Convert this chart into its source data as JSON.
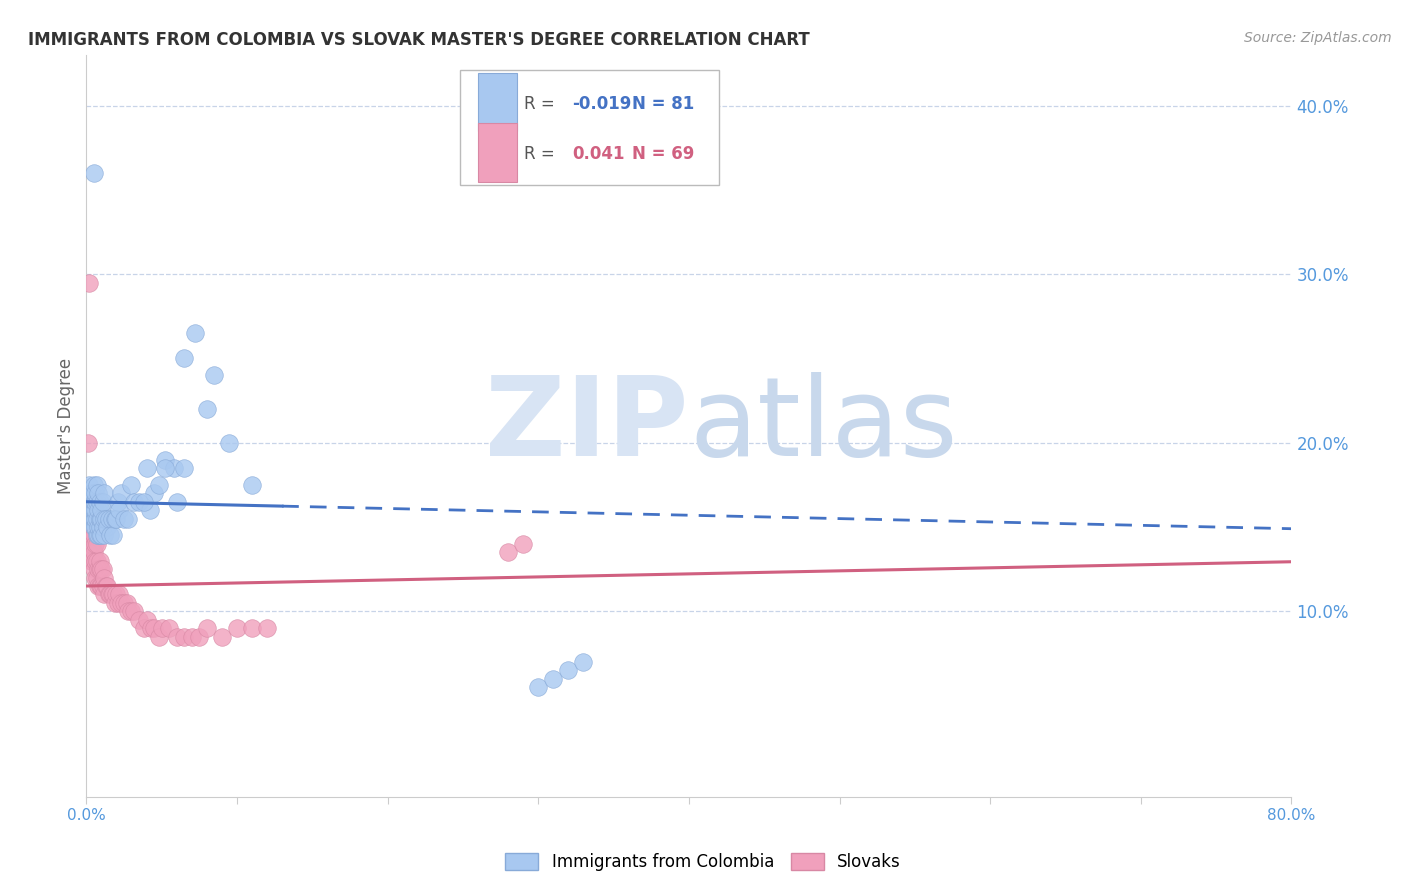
{
  "title": "IMMIGRANTS FROM COLOMBIA VS SLOVAK MASTER'S DEGREE CORRELATION CHART",
  "source": "Source: ZipAtlas.com",
  "ylabel": "Master's Degree",
  "series1_label": "Immigrants from Colombia",
  "series1_R": "-0.019",
  "series1_N": "81",
  "series1_color": "#a8c8f0",
  "series1_edge": "#88aad8",
  "series2_label": "Slovaks",
  "series2_R": "0.041",
  "series2_N": "69",
  "series2_color": "#f0a0bc",
  "series2_edge": "#d888a4",
  "trend1_color": "#4472c4",
  "trend2_color": "#d06080",
  "grid_color": "#c8d4e8",
  "background_color": "#ffffff",
  "title_color": "#333333",
  "right_axis_color": "#5599dd",
  "watermark_main_color": "#d8e4f4",
  "watermark_sub_color": "#c8d8ec",
  "xmin": 0.0,
  "xmax": 0.8,
  "ymin": -0.01,
  "ymax": 0.43,
  "scatter1_x": [
    0.001,
    0.001,
    0.002,
    0.002,
    0.002,
    0.003,
    0.003,
    0.003,
    0.003,
    0.004,
    0.004,
    0.004,
    0.004,
    0.005,
    0.005,
    0.005,
    0.005,
    0.005,
    0.006,
    0.006,
    0.006,
    0.006,
    0.006,
    0.007,
    0.007,
    0.007,
    0.007,
    0.008,
    0.008,
    0.008,
    0.008,
    0.009,
    0.009,
    0.009,
    0.009,
    0.01,
    0.01,
    0.01,
    0.011,
    0.011,
    0.012,
    0.012,
    0.012,
    0.013,
    0.014,
    0.015,
    0.016,
    0.017,
    0.018,
    0.019,
    0.02,
    0.021,
    0.022,
    0.023,
    0.025,
    0.028,
    0.03,
    0.032,
    0.035,
    0.04,
    0.042,
    0.045,
    0.052,
    0.058,
    0.065,
    0.072,
    0.08,
    0.085,
    0.095,
    0.11,
    0.038,
    0.048,
    0.052,
    0.06,
    0.065,
    0.3,
    0.31,
    0.32,
    0.33,
    0.005
  ],
  "scatter1_y": [
    0.165,
    0.155,
    0.165,
    0.155,
    0.175,
    0.16,
    0.155,
    0.17,
    0.165,
    0.155,
    0.165,
    0.17,
    0.16,
    0.155,
    0.16,
    0.165,
    0.175,
    0.15,
    0.15,
    0.155,
    0.16,
    0.165,
    0.17,
    0.145,
    0.155,
    0.165,
    0.175,
    0.145,
    0.15,
    0.16,
    0.17,
    0.145,
    0.15,
    0.155,
    0.165,
    0.145,
    0.155,
    0.16,
    0.15,
    0.165,
    0.145,
    0.155,
    0.17,
    0.155,
    0.15,
    0.155,
    0.145,
    0.155,
    0.145,
    0.155,
    0.155,
    0.165,
    0.16,
    0.17,
    0.155,
    0.155,
    0.175,
    0.165,
    0.165,
    0.185,
    0.16,
    0.17,
    0.19,
    0.185,
    0.25,
    0.265,
    0.22,
    0.24,
    0.2,
    0.175,
    0.165,
    0.175,
    0.185,
    0.165,
    0.185,
    0.055,
    0.06,
    0.065,
    0.07,
    0.36
  ],
  "scatter2_x": [
    0.001,
    0.001,
    0.002,
    0.002,
    0.002,
    0.003,
    0.003,
    0.003,
    0.004,
    0.004,
    0.004,
    0.005,
    0.005,
    0.005,
    0.006,
    0.006,
    0.006,
    0.007,
    0.007,
    0.007,
    0.008,
    0.008,
    0.009,
    0.009,
    0.009,
    0.01,
    0.01,
    0.011,
    0.011,
    0.012,
    0.012,
    0.013,
    0.014,
    0.015,
    0.016,
    0.017,
    0.018,
    0.019,
    0.02,
    0.021,
    0.022,
    0.023,
    0.025,
    0.027,
    0.028,
    0.03,
    0.032,
    0.035,
    0.038,
    0.04,
    0.043,
    0.045,
    0.048,
    0.05,
    0.055,
    0.06,
    0.065,
    0.07,
    0.075,
    0.08,
    0.09,
    0.1,
    0.11,
    0.12,
    0.28,
    0.29,
    0.001,
    0.002
  ],
  "scatter2_y": [
    0.135,
    0.15,
    0.135,
    0.145,
    0.155,
    0.13,
    0.14,
    0.15,
    0.13,
    0.14,
    0.145,
    0.125,
    0.135,
    0.145,
    0.12,
    0.13,
    0.14,
    0.12,
    0.13,
    0.14,
    0.115,
    0.125,
    0.115,
    0.125,
    0.13,
    0.115,
    0.125,
    0.115,
    0.125,
    0.11,
    0.12,
    0.115,
    0.115,
    0.11,
    0.11,
    0.11,
    0.11,
    0.105,
    0.11,
    0.105,
    0.11,
    0.105,
    0.105,
    0.105,
    0.1,
    0.1,
    0.1,
    0.095,
    0.09,
    0.095,
    0.09,
    0.09,
    0.085,
    0.09,
    0.09,
    0.085,
    0.085,
    0.085,
    0.085,
    0.09,
    0.085,
    0.09,
    0.09,
    0.09,
    0.135,
    0.14,
    0.2,
    0.295
  ],
  "trend1_x_solid_end": 0.13,
  "trend1_slope": -0.02,
  "trend1_intercept": 0.165,
  "trend2_slope": 0.018,
  "trend2_intercept": 0.115
}
